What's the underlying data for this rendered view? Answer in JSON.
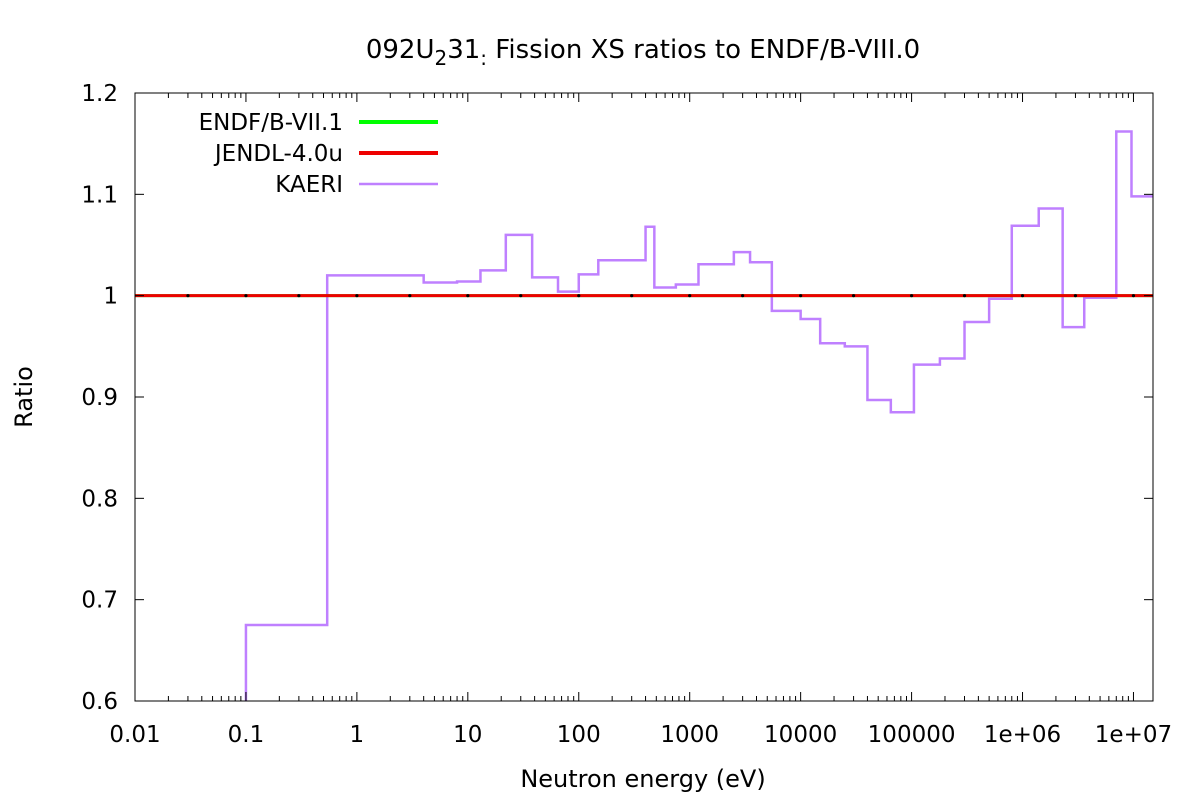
{
  "chart_data": {
    "type": "line",
    "title_parts": {
      "pre": "092U",
      "sub1": "2",
      "mid": "31",
      "sub2": ":",
      "post": " Fission XS ratios to ENDF/B-VIII.0"
    },
    "xlabel": "Neutron energy (eV)",
    "ylabel": "Ratio",
    "xscale": "log",
    "xlim": [
      0.01,
      15000000
    ],
    "ylim": [
      0.6,
      1.2
    ],
    "grid": false,
    "legend_position": "top-left",
    "xticks": [
      {
        "value": 0.01,
        "label": "0.01"
      },
      {
        "value": 0.1,
        "label": "0.1"
      },
      {
        "value": 1,
        "label": "1"
      },
      {
        "value": 10,
        "label": "10"
      },
      {
        "value": 100,
        "label": "100"
      },
      {
        "value": 1000,
        "label": "1000"
      },
      {
        "value": 10000,
        "label": "10000"
      },
      {
        "value": 100000,
        "label": "100000"
      },
      {
        "value": 1000000,
        "label": "1e+06"
      },
      {
        "value": 10000000,
        "label": "1e+07"
      }
    ],
    "yticks": [
      {
        "value": 0.6,
        "label": "0.6"
      },
      {
        "value": 0.7,
        "label": "0.7"
      },
      {
        "value": 0.8,
        "label": "0.8"
      },
      {
        "value": 0.9,
        "label": "0.9"
      },
      {
        "value": 1.0,
        "label": "1"
      },
      {
        "value": 1.1,
        "label": "1.1"
      },
      {
        "value": 1.2,
        "label": "1.2"
      }
    ],
    "series": [
      {
        "name": "ENDF/B-VII.1",
        "color": "#00ff00",
        "style": "line",
        "x": [
          0.01,
          15000000
        ],
        "y": [
          1.0,
          1.0
        ]
      },
      {
        "name": "JENDL-4.0u",
        "color": "#ee0000",
        "style": "line",
        "x": [
          0.01,
          15000000
        ],
        "y": [
          1.0,
          1.0
        ]
      },
      {
        "name": "KAERI",
        "color": "#bf80ff",
        "style": "step",
        "x": [
          0.1,
          0.54,
          4,
          8,
          13,
          22,
          38,
          65,
          100,
          150,
          400,
          480,
          750,
          1200,
          2500,
          3500,
          5500,
          10000,
          15000,
          25000,
          40000,
          65000,
          105000,
          180000,
          300000,
          500000,
          800000,
          1400000,
          2300000,
          3600000,
          7000000,
          9600000,
          15000000
        ],
        "y": [
          0.675,
          1.02,
          1.013,
          1.014,
          1.025,
          1.06,
          1.018,
          1.004,
          1.021,
          1.035,
          1.068,
          1.008,
          1.011,
          1.031,
          1.043,
          1.033,
          0.985,
          0.977,
          0.953,
          0.95,
          0.897,
          0.885,
          0.932,
          0.938,
          0.974,
          0.997,
          1.069,
          1.086,
          0.969,
          0.998,
          1.162,
          1.098,
          1.098
        ]
      }
    ]
  }
}
